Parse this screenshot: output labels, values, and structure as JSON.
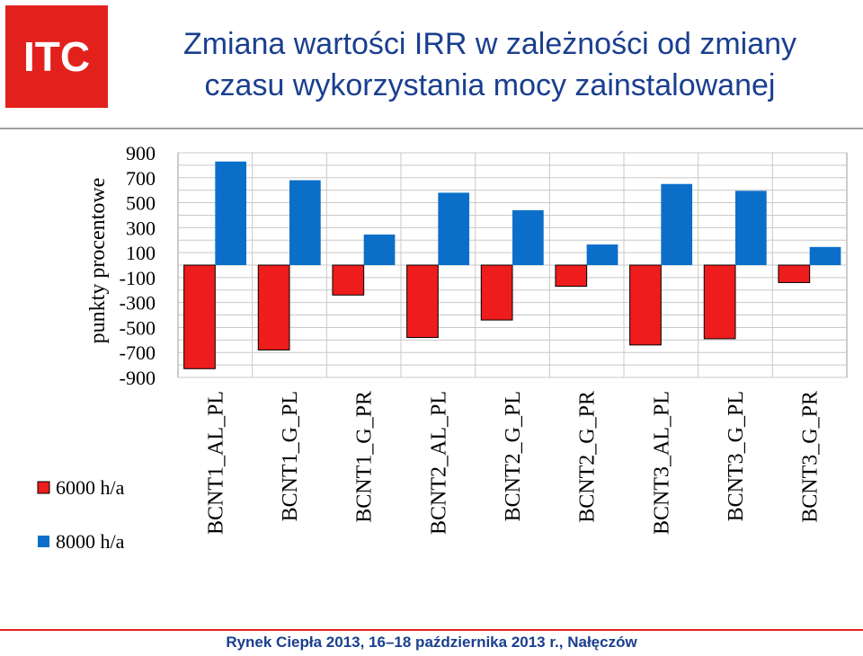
{
  "logo": {
    "text": "ITC",
    "color": "#e3211c"
  },
  "header": {
    "title_line1": "Zmiana wartości IRR w zależności od zmiany",
    "title_line2": "czasu wykorzystania mocy zainstalowanej"
  },
  "footer": {
    "text": "Rynek Ciepła 2013, 16–18 października 2013 r., Nałęczów"
  },
  "chart_data": {
    "type": "bar",
    "title": "",
    "ylabel": "punkty procentowe",
    "xlabel": "",
    "ylim": [
      -900,
      900
    ],
    "yticks": [
      900,
      700,
      500,
      300,
      100,
      -100,
      -300,
      -500,
      -700,
      -900
    ],
    "grid": true,
    "legend_position": "left",
    "categories": [
      "BCNT1_AL_PL",
      "BCNT1_G_PL",
      "BCNT1_G_PR",
      "BCNT2_AL_PL",
      "BCNT2_G_PL",
      "BCNT2_G_PR",
      "BCNT3_AL_PL",
      "BCNT3_G_PL",
      "BCNT3_G_PR"
    ],
    "series": [
      {
        "name": "6000 h/a",
        "color": "#ee1c1c",
        "values": [
          -830,
          -680,
          -240,
          -580,
          -440,
          -170,
          -640,
          -590,
          -140
        ]
      },
      {
        "name": "8000 h/a",
        "color": "#0b6fc9",
        "values": [
          830,
          680,
          245,
          580,
          440,
          165,
          650,
          595,
          145
        ]
      }
    ]
  }
}
